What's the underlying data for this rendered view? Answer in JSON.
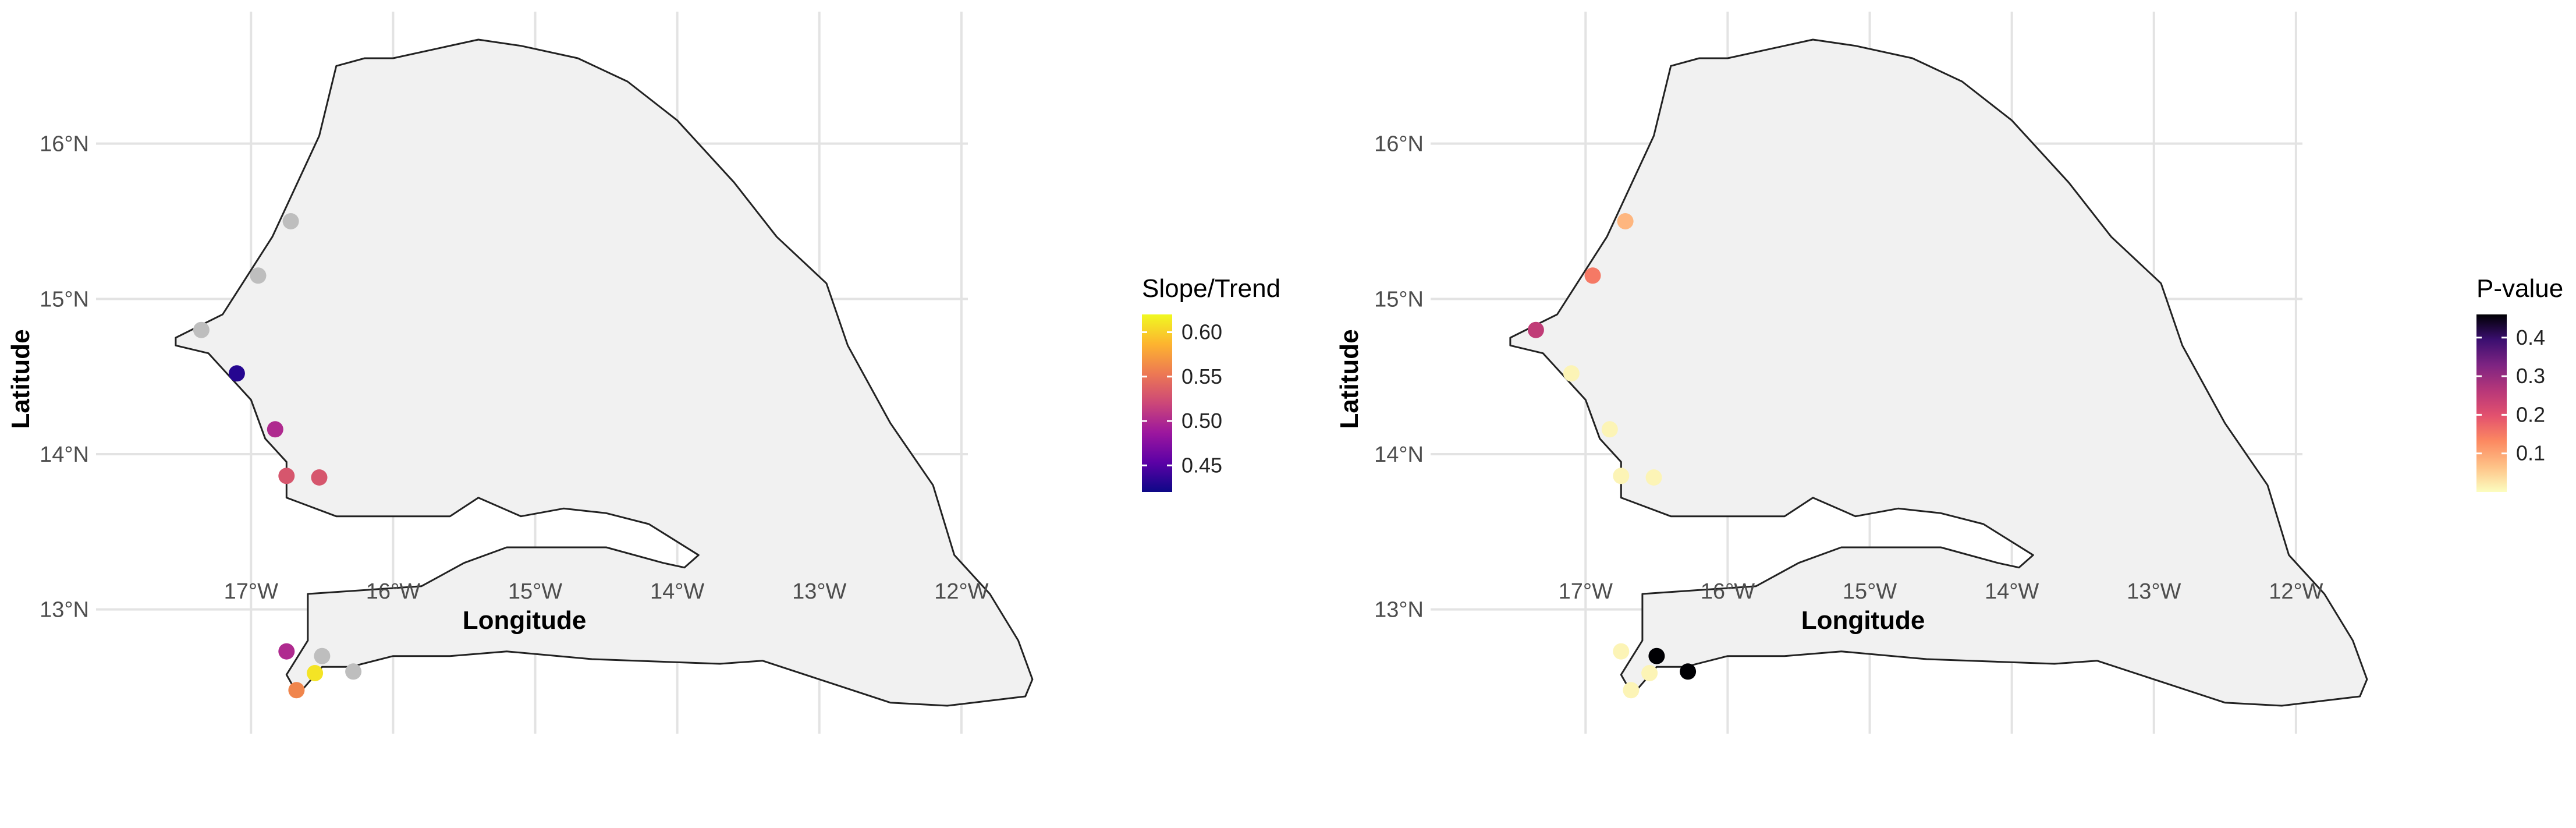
{
  "maps": [
    {
      "legend": {
        "title": "Slope/Trend",
        "ticks": [
          "0.45",
          "0.50",
          "0.55",
          "0.60"
        ],
        "tick_values": [
          0.45,
          0.5,
          0.55,
          0.6
        ],
        "range": [
          0.42,
          0.62
        ],
        "palette": [
          "#0d0887",
          "#5c01a6",
          "#9c179e",
          "#cc4778",
          "#ed7953",
          "#fdb42f",
          "#f0f921"
        ]
      },
      "xlabel": "Longitude",
      "ylabel": "Latitude",
      "x_ticks": [
        "17°W",
        "16°W",
        "15°W",
        "14°W",
        "13°W",
        "12°W"
      ],
      "y_ticks": [
        "16°N",
        "15°N",
        "14°N",
        "13°N"
      ],
      "missing_color": "#bebebe",
      "points": [
        {
          "lon": -16.72,
          "lat": 15.5,
          "value": null
        },
        {
          "lon": -16.95,
          "lat": 15.15,
          "value": null
        },
        {
          "lon": -17.35,
          "lat": 14.8,
          "value": null
        },
        {
          "lon": -17.1,
          "lat": 14.52,
          "value": 0.43
        },
        {
          "lon": -16.83,
          "lat": 14.16,
          "value": 0.5
        },
        {
          "lon": -16.75,
          "lat": 13.86,
          "value": 0.53
        },
        {
          "lon": -16.52,
          "lat": 13.85,
          "value": 0.53
        },
        {
          "lon": -16.75,
          "lat": 12.73,
          "value": 0.5
        },
        {
          "lon": -16.5,
          "lat": 12.7,
          "value": null
        },
        {
          "lon": -16.28,
          "lat": 12.6,
          "value": null
        },
        {
          "lon": -16.55,
          "lat": 12.59,
          "value": 0.61
        },
        {
          "lon": -16.68,
          "lat": 12.48,
          "value": 0.56
        }
      ]
    },
    {
      "legend": {
        "title": "P-value",
        "ticks": [
          "0.1",
          "0.2",
          "0.3",
          "0.4"
        ],
        "tick_values": [
          0.1,
          0.2,
          0.3,
          0.4
        ],
        "range": [
          0.0,
          0.46
        ],
        "palette": [
          "#fcfdbf",
          "#fec287",
          "#fc8961",
          "#e3516e",
          "#b73779",
          "#7e2482",
          "#3b0f70",
          "#000004"
        ]
      },
      "xlabel": "Longitude",
      "ylabel": "Latitude",
      "x_ticks": [
        "17°W",
        "16°W",
        "15°W",
        "14°W",
        "13°W",
        "12°W"
      ],
      "y_ticks": [
        "16°N",
        "15°N",
        "14°N",
        "13°N"
      ],
      "missing_color": "#bebebe",
      "points": [
        {
          "lon": -16.72,
          "lat": 15.5,
          "value": 0.08
        },
        {
          "lon": -16.95,
          "lat": 15.15,
          "value": 0.15
        },
        {
          "lon": -17.35,
          "lat": 14.8,
          "value": 0.25
        },
        {
          "lon": -17.1,
          "lat": 14.52,
          "value": 0.01
        },
        {
          "lon": -16.83,
          "lat": 14.16,
          "value": 0.01
        },
        {
          "lon": -16.75,
          "lat": 13.86,
          "value": 0.01
        },
        {
          "lon": -16.52,
          "lat": 13.85,
          "value": 0.01
        },
        {
          "lon": -16.75,
          "lat": 12.73,
          "value": 0.01
        },
        {
          "lon": -16.5,
          "lat": 12.7,
          "value": 0.46
        },
        {
          "lon": -16.28,
          "lat": 12.6,
          "value": 0.46
        },
        {
          "lon": -16.55,
          "lat": 12.59,
          "value": 0.01
        },
        {
          "lon": -16.68,
          "lat": 12.48,
          "value": 0.01
        }
      ]
    }
  ]
}
